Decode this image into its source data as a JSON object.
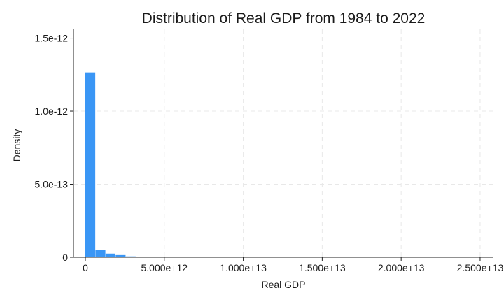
{
  "chart_data": {
    "type": "bar",
    "title": "Distribution of Real GDP from 1984 to 2022",
    "xlabel": "Real GDP",
    "ylabel": "Density",
    "xlim": [
      0,
      25800000000000
    ],
    "ylim": [
      0,
      1.56e-12
    ],
    "grid": true,
    "bin_width": 640000000000,
    "bins": [
      {
        "start": 0,
        "end": 640000000000,
        "density": 1.265e-12
      },
      {
        "start": 640000000000,
        "end": 1280000000000,
        "density": 5e-14
      },
      {
        "start": 1280000000000,
        "end": 1920000000000,
        "density": 2.5e-14
      },
      {
        "start": 1920000000000,
        "end": 2560000000000,
        "density": 1.5e-14
      },
      {
        "start": 2560000000000,
        "end": 3200000000000,
        "density": 6e-15
      },
      {
        "start": 3200000000000,
        "end": 3840000000000,
        "density": 4e-15
      },
      {
        "start": 3840000000000,
        "end": 4480000000000,
        "density": 3e-15
      },
      {
        "start": 4480000000000,
        "end": 5120000000000,
        "density": 2e-15
      },
      {
        "start": 5120000000000,
        "end": 5760000000000,
        "density": 2e-15
      },
      {
        "start": 5760000000000,
        "end": 6400000000000,
        "density": 1e-15
      },
      {
        "start": 6400000000000,
        "end": 7040000000000,
        "density": 1e-15
      },
      {
        "start": 7040000000000,
        "end": 7680000000000,
        "density": 1e-15
      },
      {
        "start": 7680000000000,
        "end": 8320000000000,
        "density": 1e-15
      },
      {
        "start": 8960000000000,
        "end": 9600000000000,
        "density": 1e-15
      },
      {
        "start": 9600000000000,
        "end": 10240000000000,
        "density": 1e-15
      },
      {
        "start": 10880000000000,
        "end": 11520000000000,
        "density": 1e-15
      },
      {
        "start": 11520000000000,
        "end": 12160000000000,
        "density": 1e-15
      },
      {
        "start": 12800000000000,
        "end": 13440000000000,
        "density": 1e-15
      },
      {
        "start": 14080000000000,
        "end": 14720000000000,
        "density": 1e-15
      },
      {
        "start": 15360000000000,
        "end": 16000000000000,
        "density": 1e-15
      },
      {
        "start": 16640000000000,
        "end": 17280000000000,
        "density": 1e-15
      },
      {
        "start": 17920000000000,
        "end": 18560000000000,
        "density": 1e-15
      },
      {
        "start": 18560000000000,
        "end": 19200000000000,
        "density": 1e-15
      },
      {
        "start": 19200000000000,
        "end": 19840000000000,
        "density": 1e-15
      },
      {
        "start": 20480000000000,
        "end": 21120000000000,
        "density": 1e-15
      },
      {
        "start": 21120000000000,
        "end": 21760000000000,
        "density": 1e-15
      },
      {
        "start": 23040000000000,
        "end": 23680000000000,
        "density": 1e-15
      },
      {
        "start": 25600000000000,
        "end": 26240000000000,
        "density": 1e-15
      }
    ],
    "x_ticks": [
      {
        "value": 0,
        "label": "0"
      },
      {
        "value": 5000000000000,
        "label": "5.000e+12"
      },
      {
        "value": 10000000000000,
        "label": "1.000e+13"
      },
      {
        "value": 15000000000000,
        "label": "1.500e+13"
      },
      {
        "value": 20000000000000,
        "label": "2.000e+13"
      },
      {
        "value": 25000000000000,
        "label": "2.500e+13"
      }
    ],
    "y_ticks": [
      {
        "value": 0,
        "label": "0"
      },
      {
        "value": 5e-13,
        "label": "5.0e-13"
      },
      {
        "value": 1e-12,
        "label": "1.0e-12"
      },
      {
        "value": 1.5e-12,
        "label": "1.5e-12"
      }
    ],
    "colors": {
      "bar": "#3a96f5",
      "axis": "#222222",
      "grid": "#e8e8e8"
    }
  }
}
